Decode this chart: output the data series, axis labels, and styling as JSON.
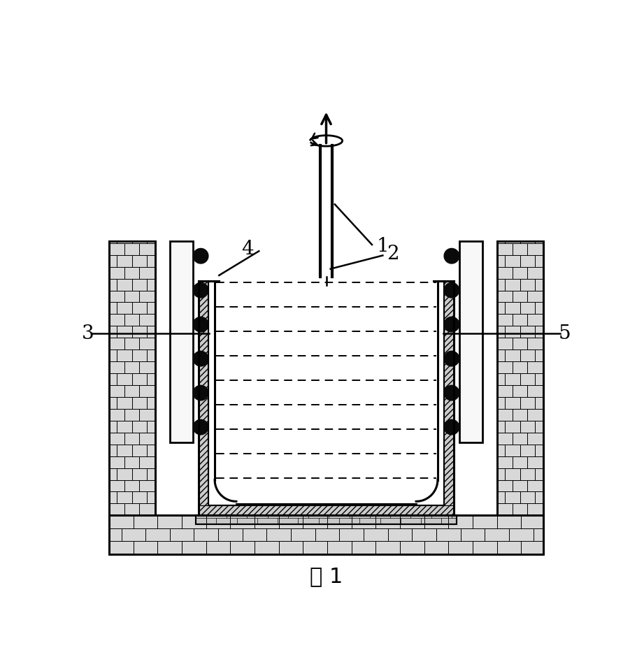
{
  "caption": "图 1",
  "bg_color": "#ffffff",
  "lc": "#000000",
  "brick_fc": "#d8d8d8",
  "white_fc": "#ffffff",
  "hatch_fc": "#d0d0d0"
}
